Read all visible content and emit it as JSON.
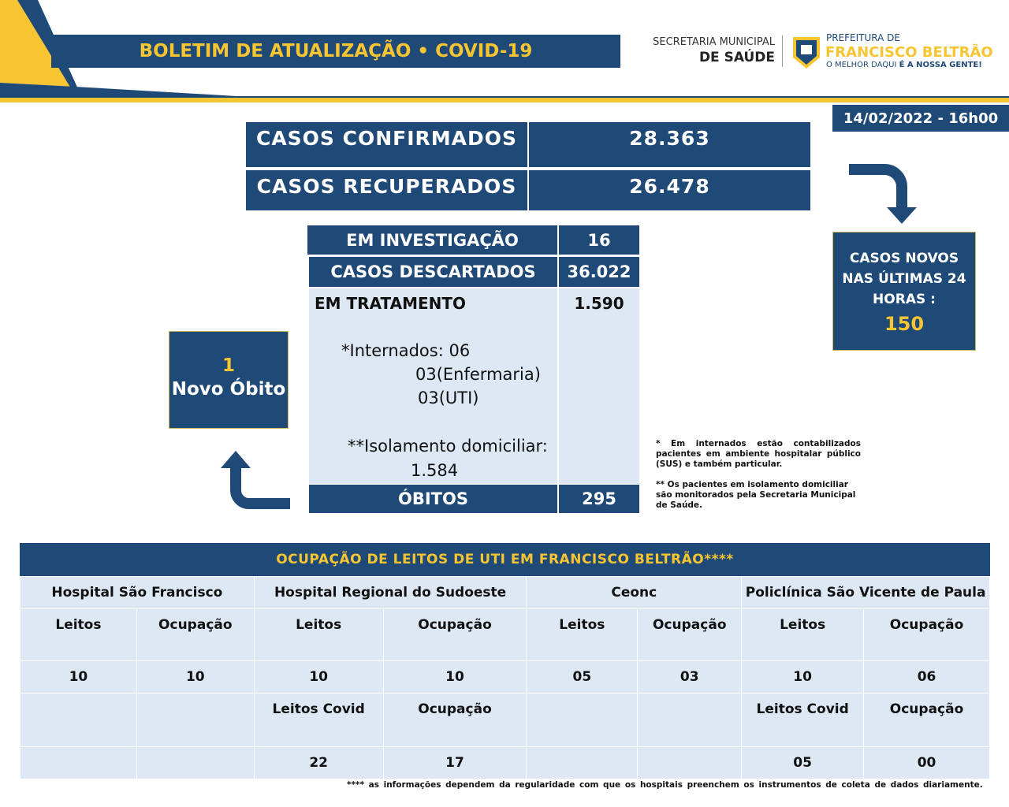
{
  "header": {
    "title": "BOLETIM DE ATUALIZAÇÃO • COVID-19",
    "secretaria_line1": "SECRETARIA MUNICIPAL",
    "secretaria_line2": "DE SAÚDE",
    "prefeitura_line1": "PREFEITURA DE",
    "prefeitura_line2": "FRANCISCO BELTRÃO",
    "slogan_a": "O MELHOR DAQUI ",
    "slogan_b": "É A NOSSA GENTE!"
  },
  "date": "14/02/2022 - 16h00",
  "summary": {
    "confirmed_label": "CASOS CONFIRMADOS",
    "confirmed_value": "28.363",
    "recovered_label": "CASOS RECUPERADOS",
    "recovered_value": "26.478"
  },
  "details": {
    "investigation_label": "EM INVESTIGAÇÃO",
    "investigation_value": "16",
    "discarded_label": "CASOS DESCARTADOS",
    "discarded_value": "36.022",
    "treatment_label": "EM TRATAMENTO",
    "treatment_value": "1.590",
    "internados": "*Internados: 06",
    "enfermaria": "03(Enfermaria)",
    "uti": "03(UTI)",
    "isolamento": "**Isolamento domiciliar:",
    "isolamento_value": "1.584",
    "deaths_label": "ÓBITOS",
    "deaths_value": "295"
  },
  "new_cases": {
    "line1": "CASOS NOVOS",
    "line2": "NAS ÚLTIMAS 24",
    "line3": "HORAS :",
    "value": "150"
  },
  "new_death": {
    "value": "1",
    "label": "Novo Óbito"
  },
  "notes": {
    "note1": "* Em internados estão contabilizados pacientes em ambiente hospitalar público (SUS) e também particular.",
    "note2": "** Os pacientes em isolamento domiciliar são monitorados pela Secretaria Municipal de Saúde."
  },
  "icu": {
    "title": "OCUPAÇÃO DE LEITOS DE UTI EM FRANCISCO BELTRÃO****",
    "hospitals": [
      "Hospital São Francisco",
      "Hospital Regional do Sudoeste",
      "Ceonc",
      "Policlínica São Vicente de Paula"
    ],
    "rows": [
      [
        "Leitos",
        "Ocupação",
        "Leitos",
        "Ocupação",
        "Leitos",
        "Ocupação",
        "Leitos",
        "Ocupação"
      ],
      [
        "10",
        "10",
        "10",
        "10",
        "05",
        "03",
        "10",
        "06"
      ],
      [
        "",
        "",
        "Leitos Covid",
        "Ocupação",
        "",
        "",
        "Leitos Covid",
        "Ocupação"
      ],
      [
        "",
        "",
        "22",
        "17",
        "",
        "",
        "05",
        "00"
      ]
    ],
    "footnote": "**** as informações dependem da regularidade com que os hospitais preenchem os instrumentos de coleta de dados diariamente."
  },
  "colors": {
    "blue": "#1f4a78",
    "yellow": "#f7c531",
    "light": "#dde8f4"
  }
}
